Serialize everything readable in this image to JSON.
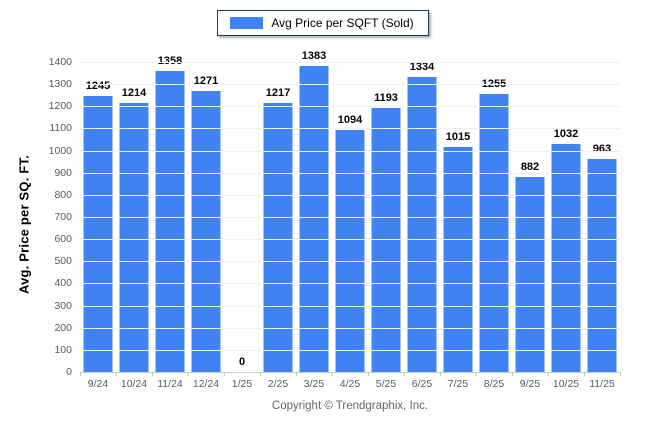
{
  "legend": {
    "label": "Avg Price per SQFT (Sold)",
    "swatch_color": "#4183f2"
  },
  "y_axis": {
    "title": "Avg. Price per SQ. FT.",
    "ticks": [
      0,
      100,
      200,
      300,
      400,
      500,
      600,
      700,
      800,
      900,
      1000,
      1100,
      1200,
      1300,
      1400
    ]
  },
  "chart_data": {
    "type": "bar",
    "title": "Avg Price per SQFT (Sold)",
    "categories": [
      "9/24",
      "10/24",
      "11/24",
      "12/24",
      "1/25",
      "2/25",
      "3/25",
      "4/25",
      "5/25",
      "6/25",
      "7/25",
      "8/25",
      "9/25",
      "10/25",
      "11/25"
    ],
    "values": [
      1245,
      1214,
      1358,
      1271,
      0,
      1217,
      1383,
      1094,
      1193,
      1334,
      1015,
      1255,
      882,
      1032,
      963
    ],
    "xlabel": "",
    "ylabel": "Avg. Price per SQ. FT.",
    "ylim": [
      0,
      1400
    ],
    "grid": true,
    "legend_position": "top",
    "bar_color": "#4183f2",
    "value_labels_shown": true
  },
  "footer": {
    "copyright": "Copyright © Trendgraphix, Inc."
  },
  "colors": {
    "bar": "#4183f2",
    "gridline": "#efefef",
    "axis_line": "#c9c9c9",
    "tick_text": "#595959",
    "value_text": "#000000",
    "footer_text": "#666666",
    "legend_border": "#1f3a5f"
  }
}
